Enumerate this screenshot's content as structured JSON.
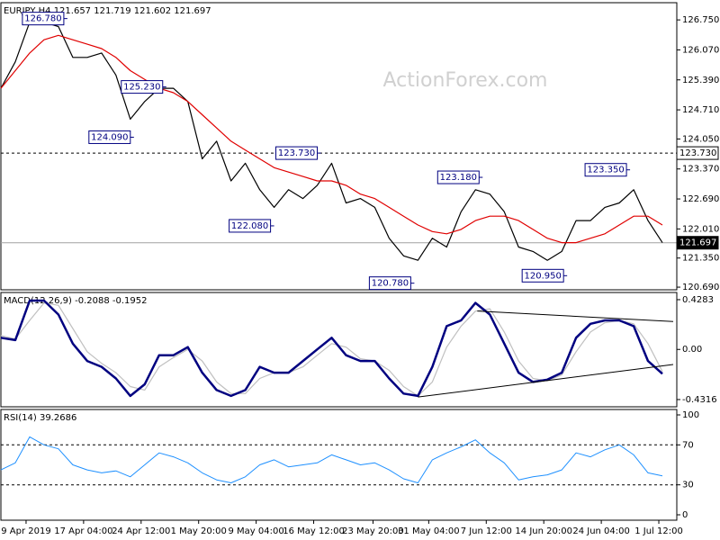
{
  "chart_data": [
    {
      "type": "line",
      "title": "EURJPY,H4  121.657 121.719 121.602 121.697",
      "watermark": "ActionForex.com",
      "x": [
        0,
        4,
        8,
        12,
        16,
        20,
        24,
        28,
        32,
        36,
        40,
        44,
        48,
        52,
        56,
        60,
        64,
        68,
        72,
        76,
        80,
        84,
        88,
        92,
        96,
        100,
        104,
        108,
        112,
        116,
        120,
        124,
        128,
        132,
        136,
        140,
        144,
        148,
        152,
        156,
        160,
        164,
        168,
        172,
        176,
        180,
        184
      ],
      "xlim": [
        0,
        188
      ],
      "series": [
        {
          "color": "#000000",
          "width": 1.2,
          "values": [
            125.2,
            125.8,
            126.7,
            126.7,
            126.6,
            125.9,
            125.9,
            126.0,
            125.5,
            124.5,
            124.9,
            125.2,
            125.2,
            124.9,
            123.6,
            124.0,
            123.1,
            123.5,
            122.9,
            122.5,
            122.9,
            122.7,
            123.0,
            123.5,
            122.6,
            122.7,
            122.5,
            121.8,
            121.4,
            121.3,
            121.8,
            121.6,
            122.4,
            122.9,
            122.8,
            122.4,
            121.6,
            121.5,
            121.3,
            121.5,
            122.2,
            122.2,
            122.5,
            122.6,
            122.9,
            122.2,
            121.7
          ]
        },
        {
          "color": "#e00000",
          "width": 1.2,
          "values": [
            125.2,
            125.6,
            126.0,
            126.3,
            126.4,
            126.3,
            126.2,
            126.1,
            125.9,
            125.6,
            125.4,
            125.2,
            125.1,
            124.9,
            124.6,
            124.3,
            124.0,
            123.8,
            123.6,
            123.4,
            123.3,
            123.2,
            123.1,
            123.1,
            123.0,
            122.8,
            122.7,
            122.5,
            122.3,
            122.1,
            121.95,
            121.9,
            122.0,
            122.2,
            122.3,
            122.3,
            122.2,
            122.0,
            121.8,
            121.7,
            121.7,
            121.8,
            121.9,
            122.1,
            122.3,
            122.3,
            122.1
          ]
        }
      ],
      "ylim": [
        120.63,
        127.14
      ],
      "yticks": [
        {
          "value": 126.75,
          "label": "126.750"
        },
        {
          "value": 126.07,
          "label": "126.070"
        },
        {
          "value": 125.39,
          "label": "125.390"
        },
        {
          "value": 124.71,
          "label": "124.710"
        },
        {
          "value": 124.05,
          "label": "124.050"
        },
        {
          "value": 123.37,
          "label": "123.370"
        },
        {
          "value": 122.69,
          "label": "122.690"
        },
        {
          "value": 122.01,
          "label": "122.010"
        },
        {
          "value": 121.35,
          "label": "121.350"
        },
        {
          "value": 120.69,
          "label": "120.690"
        }
      ],
      "levels": [
        {
          "value": 123.73,
          "label": "123.730",
          "style": "dashed"
        },
        {
          "value": 121.697,
          "label": "121.697",
          "style": "solid"
        }
      ],
      "annotations": [
        {
          "x": 17.5,
          "value": 126.78,
          "label": "126.780"
        },
        {
          "x": 45,
          "value": 125.23,
          "label": "125.230"
        },
        {
          "x": 36,
          "value": 124.09,
          "label": "124.090"
        },
        {
          "x": 88,
          "value": 123.73,
          "label": "123.730"
        },
        {
          "x": 75,
          "value": 122.08,
          "label": "122.080"
        },
        {
          "x": 133,
          "value": 123.18,
          "label": "123.180"
        },
        {
          "x": 114,
          "value": 120.78,
          "label": "120.780"
        },
        {
          "x": 156.5,
          "value": 120.95,
          "label": "120.950"
        },
        {
          "x": 174,
          "value": 123.35,
          "label": "123.350"
        }
      ]
    },
    {
      "type": "line",
      "title": "MACD(12,26,9) -0.2088 -0.1952",
      "x": [
        0,
        4,
        8,
        12,
        16,
        20,
        24,
        28,
        32,
        36,
        40,
        44,
        48,
        52,
        56,
        60,
        64,
        68,
        72,
        76,
        80,
        84,
        88,
        92,
        96,
        100,
        104,
        108,
        112,
        116,
        120,
        124,
        128,
        132,
        136,
        140,
        144,
        148,
        152,
        156,
        160,
        164,
        168,
        172,
        176,
        180,
        184
      ],
      "xlim": [
        0,
        188
      ],
      "series": [
        {
          "color": "#c0c0c0",
          "width": 1.2,
          "values": [
            0.12,
            0.09,
            0.25,
            0.4,
            0.38,
            0.18,
            -0.02,
            -0.12,
            -0.2,
            -0.32,
            -0.35,
            -0.15,
            -0.07,
            0.0,
            -0.1,
            -0.28,
            -0.38,
            -0.38,
            -0.25,
            -0.2,
            -0.2,
            -0.15,
            -0.05,
            0.05,
            0.02,
            -0.08,
            -0.1,
            -0.18,
            -0.32,
            -0.4,
            -0.28,
            0.02,
            0.2,
            0.33,
            0.35,
            0.15,
            -0.1,
            -0.25,
            -0.27,
            -0.22,
            -0.02,
            0.15,
            0.23,
            0.25,
            0.22,
            0.05,
            -0.19
          ]
        },
        {
          "color": "#000080",
          "width": 2.5,
          "values": [
            0.1,
            0.08,
            0.42,
            0.42,
            0.3,
            0.05,
            -0.1,
            -0.15,
            -0.25,
            -0.4,
            -0.3,
            -0.05,
            -0.05,
            0.02,
            -0.2,
            -0.35,
            -0.4,
            -0.35,
            -0.15,
            -0.2,
            -0.2,
            -0.1,
            0.0,
            0.1,
            -0.05,
            -0.1,
            -0.1,
            -0.25,
            -0.38,
            -0.4,
            -0.15,
            0.2,
            0.25,
            0.4,
            0.3,
            0.05,
            -0.2,
            -0.28,
            -0.26,
            -0.2,
            0.1,
            0.22,
            0.25,
            0.25,
            0.2,
            -0.1,
            -0.21
          ]
        }
      ],
      "ylim": [
        -0.494,
        0.49
      ],
      "yticks": [
        0.4283,
        {
          "value": 0,
          "label": "0.00"
        },
        -0.4316
      ],
      "trendlines": [
        {
          "x1": 132.5,
          "y1": 0.33,
          "x2": 187,
          "y2": 0.24
        },
        {
          "x1": 116,
          "y1": -0.41,
          "x2": 187,
          "y2": -0.13
        }
      ]
    },
    {
      "type": "line",
      "title": "RSI(14) 39.2686",
      "x": [
        0,
        4,
        8,
        12,
        16,
        20,
        24,
        28,
        32,
        36,
        40,
        44,
        48,
        52,
        56,
        60,
        64,
        68,
        72,
        76,
        80,
        84,
        88,
        92,
        96,
        100,
        104,
        108,
        112,
        116,
        120,
        124,
        128,
        132,
        136,
        140,
        144,
        148,
        152,
        156,
        160,
        164,
        168,
        172,
        176,
        180,
        184
      ],
      "xlim": [
        0,
        188
      ],
      "series": [
        {
          "color": "#1e90ff",
          "width": 1,
          "values": [
            45,
            52,
            78,
            70,
            66,
            50,
            45,
            42,
            44,
            38,
            50,
            62,
            58,
            52,
            42,
            35,
            32,
            38,
            50,
            55,
            48,
            50,
            52,
            60,
            55,
            50,
            52,
            45,
            36,
            32,
            55,
            62,
            68,
            75,
            62,
            52,
            35,
            38,
            40,
            45,
            62,
            58,
            65,
            70,
            60,
            42,
            39
          ]
        }
      ],
      "ylim": [
        -5.4,
        105.4
      ],
      "yticks": [
        100,
        70,
        30,
        0
      ],
      "levels": [
        {
          "value": 70,
          "style": "dashed"
        },
        {
          "value": 30,
          "style": "dashed"
        }
      ],
      "xticks": [
        {
          "value": 7,
          "label": "9 Apr 2019"
        },
        {
          "value": 23,
          "label": "17 Apr 04:00"
        },
        {
          "value": 39,
          "label": "24 Apr 12:00"
        },
        {
          "value": 55,
          "label": "1 May 20:00"
        },
        {
          "value": 71,
          "label": "9 May 04:00"
        },
        {
          "value": 87,
          "label": "16 May 12:00"
        },
        {
          "value": 103.5,
          "label": "23 May 20:00"
        },
        {
          "value": 119,
          "label": "31 May 04:00"
        },
        {
          "value": 135,
          "label": "7 Jun 12:00"
        },
        {
          "value": 151,
          "label": "14 Jun 20:00"
        },
        {
          "value": 167,
          "label": "24 Jun 04:00"
        },
        {
          "value": 183,
          "label": "1 Jul 12:00"
        }
      ]
    }
  ]
}
